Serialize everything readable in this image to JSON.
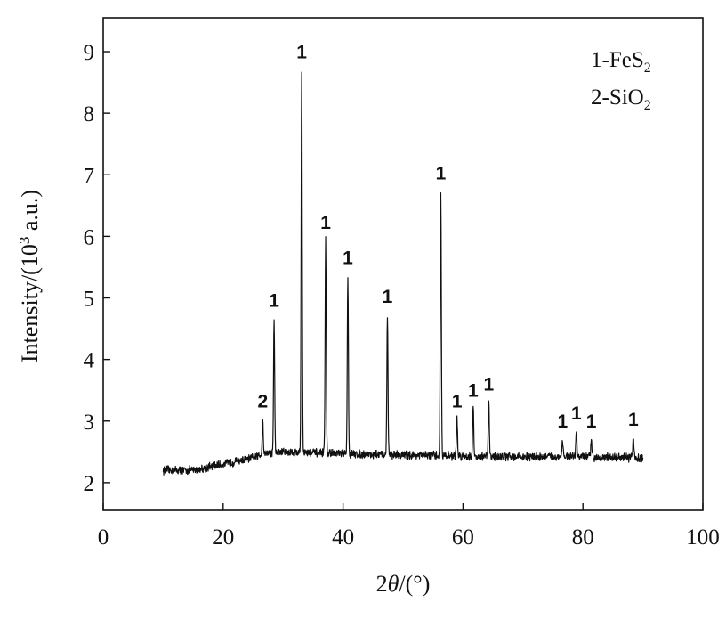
{
  "chart_data": {
    "type": "line",
    "title": "",
    "xlabel": "2θ/(°)",
    "ylabel_prefix": "Intensity/(10",
    "ylabel_sup": "3",
    "ylabel_suffix": " a.u.)",
    "xlim": [
      0,
      100
    ],
    "ylim": [
      1.55,
      9.55
    ],
    "x_ticks": [
      0,
      20,
      40,
      60,
      80,
      100
    ],
    "y_ticks": [
      2,
      3,
      4,
      5,
      6,
      7,
      8,
      9
    ],
    "grid": false,
    "legend_position": "top-right",
    "legend": [
      {
        "label": "1",
        "formula": "FeS",
        "sub": "2"
      },
      {
        "label": "2",
        "formula": "SiO",
        "sub": "2"
      }
    ],
    "series": [
      {
        "baseline": [
          [
            10,
            2.2
          ],
          [
            15,
            2.2
          ],
          [
            20,
            2.3
          ],
          [
            25,
            2.4
          ],
          [
            27,
            2.48
          ],
          [
            30,
            2.5
          ],
          [
            40,
            2.47
          ],
          [
            50,
            2.45
          ],
          [
            60,
            2.43
          ],
          [
            70,
            2.42
          ],
          [
            80,
            2.42
          ],
          [
            90,
            2.4
          ]
        ],
        "peaks": [
          {
            "x": 26.6,
            "y": 3.05,
            "label": "2"
          },
          {
            "x": 28.5,
            "y": 4.68,
            "label": "1"
          },
          {
            "x": 33.1,
            "y": 8.72,
            "label": "1"
          },
          {
            "x": 37.1,
            "y": 5.95,
            "label": "1"
          },
          {
            "x": 40.8,
            "y": 5.38,
            "label": "1"
          },
          {
            "x": 47.4,
            "y": 4.75,
            "label": "1"
          },
          {
            "x": 56.3,
            "y": 6.75,
            "label": "1"
          },
          {
            "x": 59.0,
            "y": 3.05,
            "label": "1"
          },
          {
            "x": 61.7,
            "y": 3.22,
            "label": "1"
          },
          {
            "x": 64.3,
            "y": 3.32,
            "label": "1"
          },
          {
            "x": 76.6,
            "y": 2.72,
            "label": "1"
          },
          {
            "x": 78.9,
            "y": 2.85,
            "label": "1"
          },
          {
            "x": 81.4,
            "y": 2.72,
            "label": "1"
          },
          {
            "x": 88.4,
            "y": 2.75,
            "label": "1"
          }
        ]
      }
    ]
  }
}
